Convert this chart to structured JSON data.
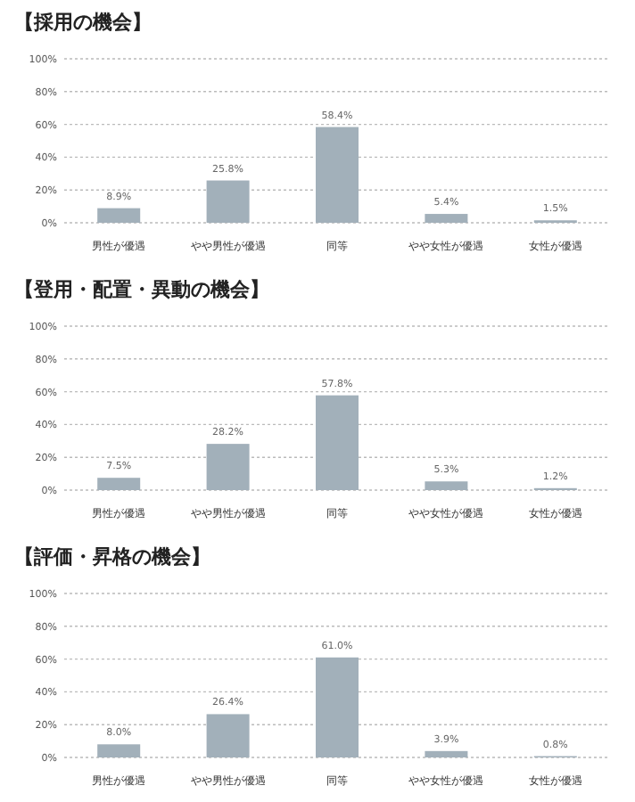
{
  "chart_data": [
    {
      "type": "bar",
      "title": "【採用の機会】",
      "categories": [
        "男性が優遇",
        "やや男性が優遇",
        "同等",
        "やや女性が優遇",
        "女性が優遇"
      ],
      "values": [
        8.9,
        25.8,
        58.4,
        5.4,
        1.5
      ],
      "value_labels": [
        "8.9%",
        "25.8%",
        "58.4%",
        "5.4%",
        "1.5%"
      ],
      "color": "#a2b0ba",
      "ylim": [
        0,
        100
      ],
      "yticks": [
        {
          "value": 0,
          "label": "0%"
        },
        {
          "value": 20,
          "label": "20%"
        },
        {
          "value": 40,
          "label": "40%"
        },
        {
          "value": 60,
          "label": "60%"
        },
        {
          "value": 80,
          "label": "80%"
        },
        {
          "value": 100,
          "label": "100%"
        }
      ],
      "grid": "y"
    },
    {
      "type": "bar",
      "title": "【登用・配置・異動の機会】",
      "categories": [
        "男性が優遇",
        "やや男性が優遇",
        "同等",
        "やや女性が優遇",
        "女性が優遇"
      ],
      "values": [
        7.5,
        28.2,
        57.8,
        5.3,
        1.2
      ],
      "value_labels": [
        "7.5%",
        "28.2%",
        "57.8%",
        "5.3%",
        "1.2%"
      ],
      "color": "#a2b0ba",
      "ylim": [
        0,
        100
      ],
      "yticks": [
        {
          "value": 0,
          "label": "0%"
        },
        {
          "value": 20,
          "label": "20%"
        },
        {
          "value": 40,
          "label": "40%"
        },
        {
          "value": 60,
          "label": "60%"
        },
        {
          "value": 80,
          "label": "80%"
        },
        {
          "value": 100,
          "label": "100%"
        }
      ],
      "grid": "y"
    },
    {
      "type": "bar",
      "title": "【評価・昇格の機会】",
      "categories": [
        "男性が優遇",
        "やや男性が優遇",
        "同等",
        "やや女性が優遇",
        "女性が優遇"
      ],
      "values": [
        8.0,
        26.4,
        61.0,
        3.9,
        0.8
      ],
      "value_labels": [
        "8.0%",
        "26.4%",
        "61.0%",
        "3.9%",
        "0.8%"
      ],
      "color": "#a2b0ba",
      "ylim": [
        0,
        100
      ],
      "yticks": [
        {
          "value": 0,
          "label": "0%"
        },
        {
          "value": 20,
          "label": "20%"
        },
        {
          "value": 40,
          "label": "40%"
        },
        {
          "value": 60,
          "label": "60%"
        },
        {
          "value": 80,
          "label": "80%"
        },
        {
          "value": 100,
          "label": "100%"
        }
      ],
      "grid": "y"
    }
  ]
}
